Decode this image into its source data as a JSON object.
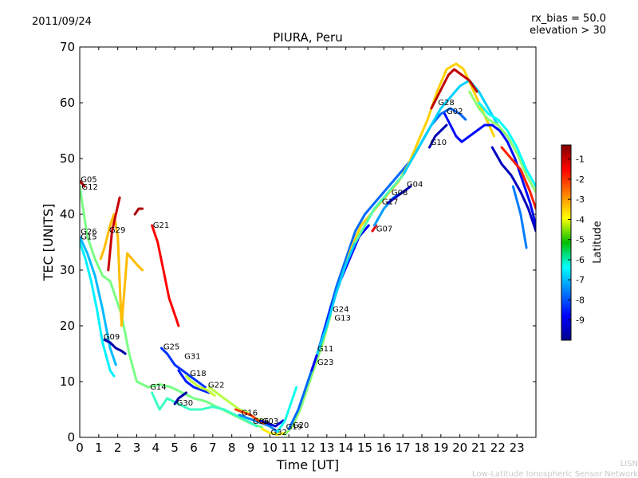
{
  "header": {
    "date": "2011/09/24",
    "rx_bias": "rx_bias = 50.0",
    "elevation": "elevation > 30"
  },
  "footer": {
    "line1": "LISN",
    "line2": "Low-Latitude Ionospheric Sensor Network"
  },
  "colorbar": {
    "label": "Latitude",
    "range": [
      -10,
      -0.3
    ],
    "ticks": [
      "-1",
      "-2",
      "-3",
      "-4",
      "-5",
      "-6",
      "-7",
      "-8",
      "-9"
    ],
    "colormap": "jet"
  },
  "chart_data": {
    "type": "line",
    "title": "PIURA, Peru",
    "xlabel": "Time [UT]",
    "ylabel": "TEC [UNITS]",
    "xlim": [
      0,
      24
    ],
    "ylim": [
      0,
      70
    ],
    "xticks": [
      "0",
      "1",
      "2",
      "3",
      "4",
      "5",
      "6",
      "7",
      "8",
      "9",
      "10",
      "11",
      "12",
      "13",
      "14",
      "15",
      "16",
      "17",
      "18",
      "19",
      "20",
      "21",
      "22",
      "23"
    ],
    "yticks": [
      "0",
      "10",
      "20",
      "30",
      "40",
      "50",
      "60",
      "70"
    ],
    "grid": false,
    "legend": "none",
    "color_by": "Latitude",
    "series": [
      {
        "name": "G05",
        "lat": -0.8,
        "x": [
          0.0,
          0.25
        ],
        "y": [
          46,
          45
        ]
      },
      {
        "name": "G12",
        "lat": -5.2,
        "x": [
          0.0,
          0.4,
          0.8,
          1.2,
          1.6,
          2.2,
          2.6,
          3.0,
          3.6,
          4.2,
          4.8,
          5.4,
          6.0,
          6.6,
          7.2,
          7.8,
          8.4,
          9.0,
          9.6
        ],
        "y": [
          45,
          36,
          32,
          29,
          28,
          22,
          15,
          10,
          9,
          9.5,
          9,
          8,
          7,
          6.5,
          5.5,
          4.5,
          3.5,
          2.5,
          1.8
        ]
      },
      {
        "name": "G26",
        "lat": -7.0,
        "x": [
          0.0,
          0.4,
          0.8,
          1.2,
          1.6,
          1.9
        ],
        "y": [
          36,
          33,
          29,
          23,
          16,
          13
        ]
      },
      {
        "name": "G15",
        "lat": -6.5,
        "x": [
          0.0,
          0.3,
          0.6,
          0.9,
          1.2,
          1.6,
          1.8
        ],
        "y": [
          35,
          32,
          28,
          23,
          17,
          12,
          11
        ]
      },
      {
        "name": "G29",
        "lat": -3.3,
        "x": [
          1.1,
          1.3,
          1.6,
          1.8,
          2.0,
          2.2,
          2.5,
          3.0,
          3.3
        ],
        "y": [
          32,
          34,
          38,
          40,
          36,
          20,
          33,
          31,
          30
        ]
      },
      {
        "name": "G09",
        "lat": -9.6,
        "x": [
          1.3,
          1.6,
          1.9,
          2.2,
          2.4
        ],
        "y": [
          17.5,
          17,
          16,
          15.5,
          15
        ]
      },
      {
        "name": "G28",
        "lat": -1.0,
        "x": [
          1.5,
          1.7,
          1.9,
          2.1
        ],
        "y": [
          30,
          37,
          40,
          43
        ]
      },
      {
        "name": "G21",
        "lat": -0.7,
        "x": [
          2.9,
          3.1,
          3.3
        ],
        "y": [
          40,
          41,
          41
        ]
      },
      {
        "name": "G21",
        "lat": -1.5,
        "x": [
          3.8,
          4.1,
          4.4,
          4.7,
          5.0,
          5.2
        ],
        "y": [
          38,
          35,
          30,
          25,
          22,
          20
        ]
      },
      {
        "name": "G25",
        "lat": -8.3,
        "x": [
          4.3,
          4.6,
          5.0,
          5.4,
          5.8,
          6.2,
          6.6
        ],
        "y": [
          16,
          15,
          13,
          12,
          11,
          10,
          9
        ]
      },
      {
        "name": "G14",
        "lat": -5.8,
        "x": [
          3.8,
          4.2,
          4.6,
          5.2,
          5.8,
          6.4,
          7.0,
          7.6,
          8.2,
          8.8,
          9.3
        ],
        "y": [
          8,
          5,
          7,
          6,
          5,
          5,
          5.5,
          5,
          4,
          3,
          2
        ]
      },
      {
        "name": "G31",
        "lat": -8.5,
        "x": [
          5.2,
          5.6,
          6.0,
          6.4,
          6.8
        ],
        "y": [
          12,
          10,
          9,
          8.5,
          8
        ]
      },
      {
        "name": "G18",
        "lat": -4.5,
        "x": [
          5.6,
          5.9,
          6.3,
          6.7,
          7.1
        ],
        "y": [
          11,
          10,
          9,
          8.5,
          7.5
        ]
      },
      {
        "name": "G30",
        "lat": -9.6,
        "x": [
          5.0,
          5.2,
          5.4,
          5.6
        ],
        "y": [
          6,
          7,
          7.5,
          8
        ]
      },
      {
        "name": "G22",
        "lat": -4.6,
        "x": [
          6.8,
          7.2,
          7.6,
          8.0,
          8.4,
          8.8,
          9.2,
          9.6
        ],
        "y": [
          9,
          8,
          7,
          6,
          5,
          4.5,
          3.5,
          3
        ]
      },
      {
        "name": "G16",
        "lat": -7.5,
        "x": [
          8.4,
          8.8,
          9.2,
          9.6,
          10.0,
          10.4
        ],
        "y": [
          4,
          3.5,
          3,
          2.5,
          2,
          1
        ]
      },
      {
        "name": "G06",
        "lat": -2.1,
        "x": [
          8.2,
          8.6,
          9.0,
          9.4,
          9.7
        ],
        "y": [
          5,
          4.5,
          4,
          3,
          2.5
        ]
      },
      {
        "name": "G03",
        "lat": -9.2,
        "x": [
          9.5,
          9.9,
          10.3,
          10.7
        ],
        "y": [
          3,
          2.5,
          2,
          3
        ]
      },
      {
        "name": "G32",
        "lat": -3.8,
        "x": [
          9.6,
          10.0,
          10.4,
          10.8
        ],
        "y": [
          1.5,
          0.8,
          0.5,
          0.8
        ]
      },
      {
        "name": "G19",
        "lat": -6.2,
        "x": [
          10.4,
          10.8,
          11.1,
          11.4
        ],
        "y": [
          1,
          3,
          6,
          9
        ]
      },
      {
        "name": "G20",
        "lat": -5.0,
        "x": [
          10.8,
          11.2,
          11.6,
          12.0,
          12.4,
          12.8,
          13.2
        ],
        "y": [
          0.5,
          2,
          5,
          9,
          13,
          17,
          22
        ]
      },
      {
        "name": "G11",
        "lat": -7.8,
        "x": [
          11.0,
          11.5,
          12.0,
          12.5,
          13.0,
          13.5,
          14.0,
          14.5,
          15.0,
          15.5,
          16.0,
          16.5,
          17.0,
          17.5,
          18.0,
          18.5,
          19.0,
          19.5,
          20.0,
          20.3
        ],
        "y": [
          1.5,
          5,
          10,
          15,
          21,
          27,
          32,
          37,
          40,
          42,
          44,
          46,
          48,
          50,
          53,
          56,
          58,
          59,
          58,
          57
        ]
      },
      {
        "name": "G23",
        "lat": -3.5,
        "x": [
          12.3,
          12.8,
          13.3,
          13.8,
          14.3,
          14.8,
          15.3,
          15.8,
          16.3,
          16.8,
          17.3,
          17.8,
          18.3,
          18.8,
          19.3,
          19.8,
          20.2,
          20.6,
          21.0,
          21.4,
          21.8
        ],
        "y": [
          13,
          18,
          24,
          29,
          34,
          38,
          40,
          42,
          44,
          46,
          49,
          53,
          57,
          62,
          66,
          67,
          66,
          63,
          60,
          57,
          54
        ]
      },
      {
        "name": "G24",
        "lat": -8.8,
        "x": [
          12.2,
          12.7,
          13.2,
          13.7,
          14.2,
          14.7,
          15.2
        ],
        "y": [
          12,
          17,
          23,
          28,
          32,
          36,
          38
        ]
      },
      {
        "name": "G13",
        "lat": -6.8,
        "x": [
          12.5,
          13.0,
          13.5,
          14.0,
          14.5,
          15.0,
          15.5,
          16.0,
          16.5,
          17.0,
          17.5,
          18.0,
          18.5,
          19.0,
          19.5,
          20.0,
          20.5,
          21.0,
          21.5,
          22.0
        ],
        "y": [
          15,
          20,
          26,
          31,
          35,
          38,
          41,
          43,
          45,
          47,
          50,
          53,
          56,
          59,
          61,
          63,
          64,
          62,
          59,
          56
        ]
      },
      {
        "name": "G07",
        "lat": -1.3,
        "x": [
          15.4,
          15.6
        ],
        "y": [
          37,
          38
        ]
      },
      {
        "name": "G17",
        "lat": -5.5,
        "x": [
          14.5,
          15.0,
          15.5,
          16.0,
          16.5,
          17.0
        ],
        "y": [
          35,
          38,
          41,
          43,
          45,
          47
        ]
      },
      {
        "name": "G08",
        "lat": -7.3,
        "x": [
          15.5,
          16.0,
          16.5,
          17.0
        ],
        "y": [
          38,
          41,
          43,
          44
        ]
      },
      {
        "name": "G04",
        "lat": -9.3,
        "x": [
          16.2,
          16.6,
          17.0,
          17.4
        ],
        "y": [
          42,
          43,
          44,
          45
        ]
      },
      {
        "name": "G10",
        "lat": -9.5,
        "x": [
          18.4,
          18.7,
          19.0,
          19.3
        ],
        "y": [
          52,
          54,
          55,
          56
        ]
      },
      {
        "name": "G28",
        "lat": -0.9,
        "x": [
          18.5,
          18.8,
          19.1,
          19.4,
          19.7,
          20.1,
          20.5,
          20.9
        ],
        "y": [
          59,
          61,
          63,
          65,
          66,
          65,
          64,
          62
        ]
      },
      {
        "name": "G02",
        "lat": -8.7,
        "x": [
          19.2,
          19.5,
          19.8,
          20.1,
          20.5,
          20.9,
          21.3,
          21.7,
          22.1,
          22.5,
          22.9,
          23.3,
          23.7,
          24.0
        ],
        "y": [
          58,
          56,
          54,
          53,
          54,
          55,
          56,
          56,
          55,
          53,
          50,
          46,
          42,
          38
        ]
      },
      {
        "name": "",
        "lat": -5.0,
        "x": [
          20.5,
          21.0,
          21.5,
          22.0,
          22.5,
          23.0,
          23.5,
          24.0
        ],
        "y": [
          62,
          59,
          57,
          56,
          54,
          51,
          47,
          44
        ]
      },
      {
        "name": "",
        "lat": -6.3,
        "x": [
          21.0,
          21.5,
          22.0,
          22.5,
          23.0,
          23.5,
          24.0
        ],
        "y": [
          60,
          58,
          57,
          55,
          52,
          48,
          45
        ]
      },
      {
        "name": "",
        "lat": -9.4,
        "x": [
          21.7,
          22.2,
          22.7,
          23.2,
          23.6,
          24.0
        ],
        "y": [
          52,
          49,
          47,
          44,
          41,
          37
        ]
      },
      {
        "name": "",
        "lat": -1.8,
        "x": [
          22.2,
          22.7,
          23.2,
          23.7,
          24.0
        ],
        "y": [
          52,
          50,
          48,
          44,
          41
        ]
      },
      {
        "name": "",
        "lat": -7.6,
        "x": [
          22.8,
          23.2,
          23.5
        ],
        "y": [
          45,
          40,
          34
        ]
      }
    ],
    "annotations": [
      {
        "text": "G05",
        "x": 0.05,
        "y": 45.8
      },
      {
        "text": "G12",
        "x": 0.1,
        "y": 44.4
      },
      {
        "text": "G26",
        "x": 0.05,
        "y": 36.4
      },
      {
        "text": "G15",
        "x": 0.05,
        "y": 35.5
      },
      {
        "text": "G29",
        "x": 1.55,
        "y": 36.7
      },
      {
        "text": "G21",
        "x": 3.85,
        "y": 37.6
      },
      {
        "text": "G09",
        "x": 1.25,
        "y": 17.6
      },
      {
        "text": "G25",
        "x": 4.4,
        "y": 15.8
      },
      {
        "text": "G31",
        "x": 5.5,
        "y": 14.1
      },
      {
        "text": "G18",
        "x": 5.8,
        "y": 11.0
      },
      {
        "text": "G14",
        "x": 3.7,
        "y": 8.6
      },
      {
        "text": "G22",
        "x": 6.75,
        "y": 8.9
      },
      {
        "text": "G30",
        "x": 5.1,
        "y": 5.7
      },
      {
        "text": "G16",
        "x": 8.5,
        "y": 3.9
      },
      {
        "text": "G06",
        "x": 9.1,
        "y": 2.4
      },
      {
        "text": "G03",
        "x": 9.6,
        "y": 2.4
      },
      {
        "text": "G32",
        "x": 10.05,
        "y": 0.4
      },
      {
        "text": "G19",
        "x": 10.85,
        "y": 1.4
      },
      {
        "text": "G20",
        "x": 11.2,
        "y": 1.7
      },
      {
        "text": "G11",
        "x": 12.5,
        "y": 15.4
      },
      {
        "text": "G23",
        "x": 12.5,
        "y": 13.0
      },
      {
        "text": "G24",
        "x": 13.3,
        "y": 22.5
      },
      {
        "text": "G13",
        "x": 13.4,
        "y": 20.9
      },
      {
        "text": "G07",
        "x": 15.6,
        "y": 36.9
      },
      {
        "text": "G17",
        "x": 15.9,
        "y": 41.8
      },
      {
        "text": "G08",
        "x": 16.4,
        "y": 43.4
      },
      {
        "text": "G04",
        "x": 17.2,
        "y": 44.9
      },
      {
        "text": "G10",
        "x": 18.45,
        "y": 52.4
      },
      {
        "text": "G28",
        "x": 18.85,
        "y": 59.6
      },
      {
        "text": "G02",
        "x": 19.3,
        "y": 58.0
      }
    ]
  }
}
